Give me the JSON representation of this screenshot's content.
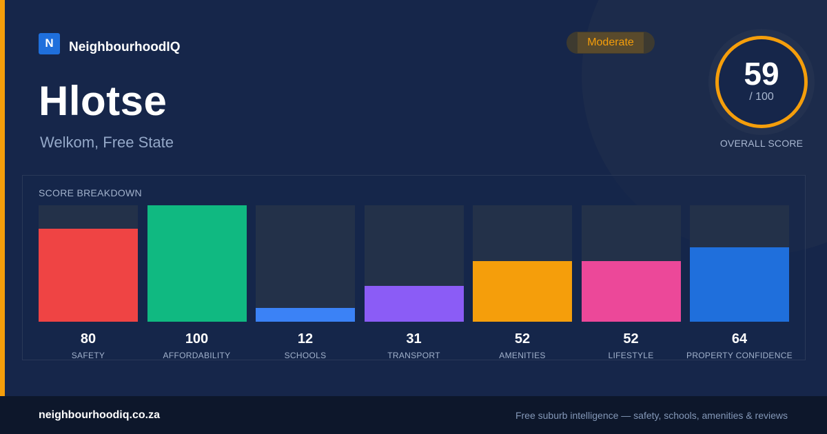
{
  "brand": {
    "logo_letter": "N",
    "name": "NeighbourhoodIQ"
  },
  "location": {
    "name": "Hlotse",
    "region": "Welkom, Free State"
  },
  "rating": {
    "label": "Moderate",
    "color": "#f59e0b"
  },
  "overall": {
    "score": "59",
    "max": "/ 100",
    "label": "OVERALL SCORE"
  },
  "panel": {
    "title": "SCORE BREAKDOWN"
  },
  "chart_data": {
    "type": "bar",
    "title": "SCORE BREAKDOWN",
    "categories": [
      "SAFETY",
      "AFFORDABILITY",
      "SCHOOLS",
      "TRANSPORT",
      "AMENITIES",
      "LIFESTYLE",
      "PROPERTY CONFIDENCE"
    ],
    "values": [
      80,
      100,
      12,
      31,
      52,
      52,
      64
    ],
    "colors": [
      "#ef4444",
      "#10b981",
      "#3b82f6",
      "#8b5cf6",
      "#f59e0b",
      "#ec4899",
      "#1f6fdc"
    ],
    "ylim": [
      0,
      100
    ],
    "grid": false,
    "legend": "none"
  },
  "footer": {
    "url": "neighbourhoodiq.co.za",
    "tagline": "Free suburb intelligence — safety, schools, amenities & reviews"
  }
}
